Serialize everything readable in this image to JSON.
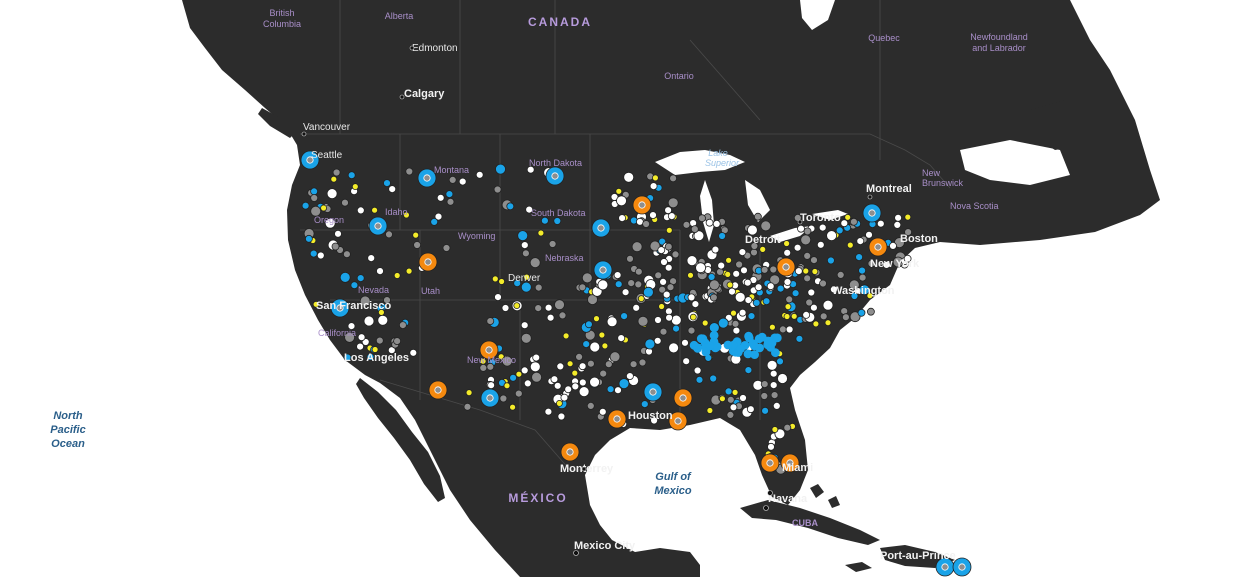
{
  "map": {
    "countries": {
      "canada": "CANADA",
      "mexico": "MÉXICO",
      "cuba": "CUBA"
    },
    "regions": {
      "british_columbia": [
        "British",
        "Columbia"
      ],
      "alberta": "Alberta",
      "ontario": "Ontario",
      "quebec": "Quebec",
      "newfoundland": [
        "Newfoundland",
        "and Labrador"
      ],
      "new_brunswick": [
        "New",
        "Brunswick"
      ],
      "nova_scotia": "Nova Scotia",
      "montana": "Montana",
      "north_dakota": "North Dakota",
      "south_dakota": "South Dakota",
      "idaho": "Idaho",
      "oregon": "Oregon",
      "wyoming": "Wyoming",
      "nebraska": "Nebraska",
      "nevada": "Nevada",
      "utah": "Utah",
      "california": "California",
      "new_mexico": "New Mexico"
    },
    "cities": {
      "edmonton": "Edmonton",
      "calgary": "Calgary",
      "vancouver": "Vancouver",
      "seattle": "Seattle",
      "montreal": "Montreal",
      "toronto": "Toronto",
      "detroit": "Detroit",
      "boston": "Boston",
      "new_york": "New York",
      "washington": "Washington",
      "san_francisco": "San Francisco",
      "los_angeles": "Los Angeles",
      "denver": "Denver",
      "houston": "Houston",
      "monterrey": "Monterrey",
      "mexico_city": "Mexico City",
      "miami": "Miami",
      "havana": "Havana",
      "port_au_prince": "Port-au-Prince"
    },
    "water": {
      "north_pacific": [
        "North",
        "Pacific",
        "Ocean"
      ],
      "gulf_of_mexico": [
        "Gulf of",
        "Mexico"
      ],
      "lake_superior": [
        "Lake",
        "Superior"
      ]
    },
    "colors": {
      "land": "#2c2c2c",
      "border": "#555555",
      "ocean": "#ffffff",
      "marker_white": "#ffffff",
      "marker_grey": "#8e8e8e",
      "marker_blue": "#1aa3e8",
      "marker_orange": "#f5890f",
      "marker_yellow": "#f4ec2a"
    }
  }
}
